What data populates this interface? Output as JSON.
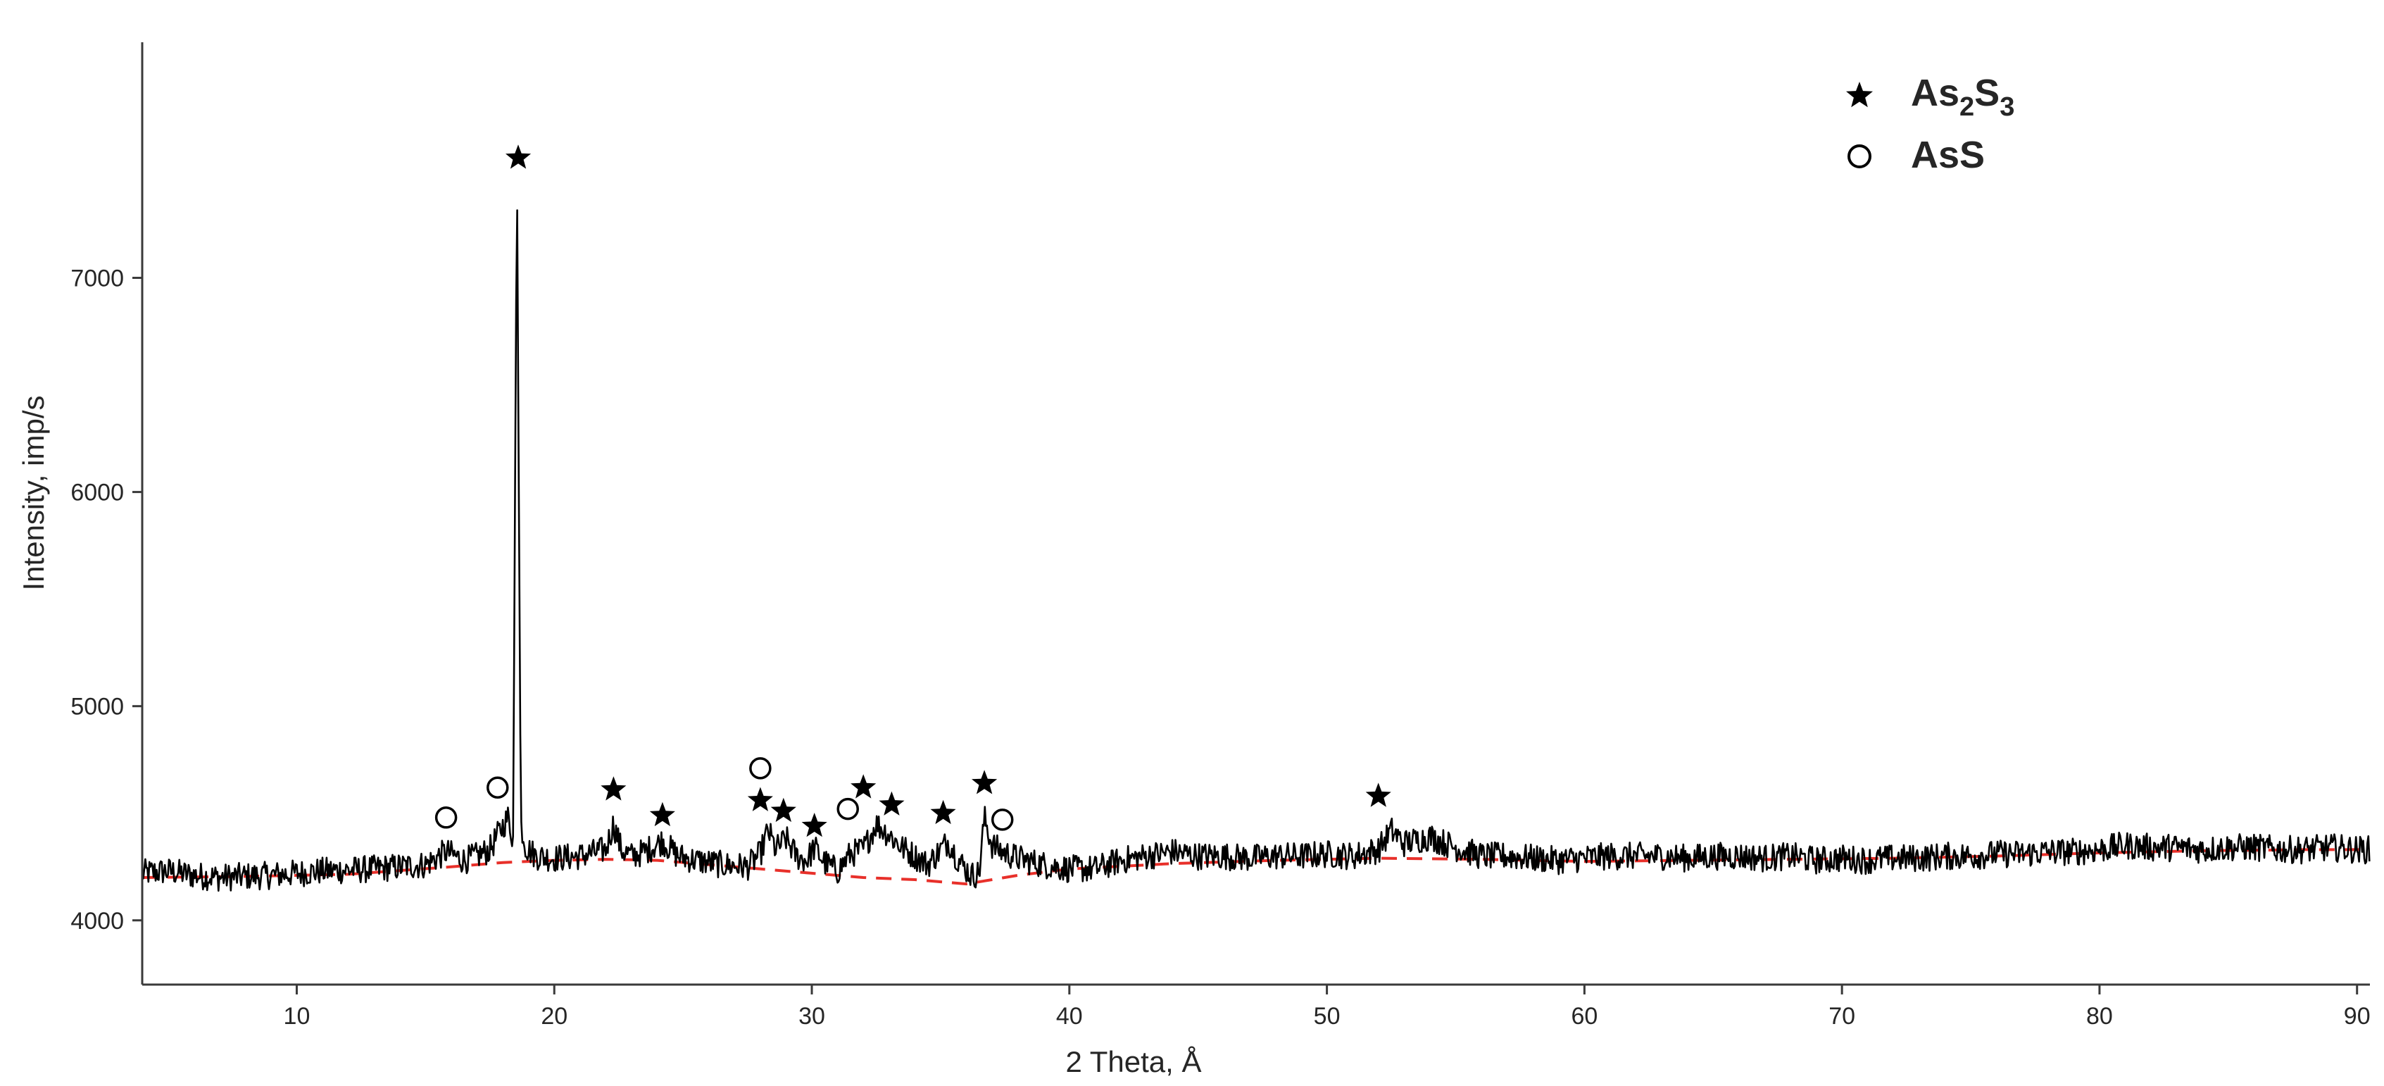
{
  "chart_data": {
    "type": "line",
    "title": "",
    "xlabel": "2 Theta, Å",
    "ylabel": "Intensity, imp/s",
    "xlim": [
      4,
      90.5
    ],
    "ylim": [
      3700,
      8100
    ],
    "x_ticks": [
      10,
      20,
      30,
      40,
      50,
      60,
      70,
      80,
      90
    ],
    "y_ticks": [
      4000,
      5000,
      6000,
      7000
    ],
    "grid": false,
    "legend_position": "top-right",
    "colors": {
      "pattern": "#000000",
      "baseline": "#e8302a",
      "axis": "#3a3a3a"
    },
    "series": [
      {
        "kind": "xrd-pattern",
        "x": [
          4,
          5,
          6,
          7,
          8,
          9,
          10,
          11,
          12,
          13,
          14,
          15,
          15.8,
          16.5,
          17,
          17.5,
          17.9,
          18.2,
          18.4,
          18.55,
          18.7,
          18.9,
          19.3,
          20,
          21,
          22,
          22.3,
          22.6,
          23,
          23.5,
          24.2,
          24.8,
          25.5,
          26.5,
          27.5,
          28,
          28.3,
          28.6,
          29,
          29.4,
          29.8,
          30.1,
          30.5,
          31,
          31.5,
          32,
          32.5,
          33,
          33.5,
          34,
          34.5,
          35,
          35.3,
          35.7,
          36.2,
          36.5,
          36.7,
          37,
          37.4,
          38,
          39,
          40,
          41,
          42,
          43,
          44,
          45,
          46,
          47,
          48,
          49,
          50,
          51,
          52,
          52.5,
          53,
          54,
          55,
          56,
          57,
          58,
          59,
          60,
          61,
          62,
          63,
          64,
          65,
          66,
          67,
          68,
          69,
          70,
          71,
          72,
          73,
          74,
          75,
          76,
          77,
          78,
          79,
          80,
          81,
          82,
          83,
          84,
          85,
          86,
          87,
          88,
          89,
          90,
          90.5
        ],
        "y": [
          4220,
          4230,
          4210,
          4200,
          4205,
          4210,
          4220,
          4230,
          4235,
          4240,
          4250,
          4260,
          4320,
          4280,
          4300,
          4330,
          4420,
          4480,
          4380,
          7520,
          4450,
          4340,
          4300,
          4290,
          4300,
          4330,
          4450,
          4330,
          4300,
          4320,
          4370,
          4300,
          4280,
          4260,
          4250,
          4310,
          4420,
          4330,
          4380,
          4300,
          4280,
          4340,
          4270,
          4230,
          4310,
          4330,
          4450,
          4400,
          4340,
          4300,
          4260,
          4330,
          4370,
          4280,
          4210,
          4220,
          4480,
          4350,
          4320,
          4290,
          4260,
          4240,
          4240,
          4280,
          4300,
          4320,
          4300,
          4300,
          4290,
          4300,
          4300,
          4310,
          4300,
          4330,
          4420,
          4360,
          4390,
          4340,
          4300,
          4300,
          4290,
          4280,
          4290,
          4300,
          4300,
          4300,
          4290,
          4300,
          4300,
          4290,
          4300,
          4280,
          4290,
          4280,
          4290,
          4290,
          4300,
          4300,
          4310,
          4310,
          4320,
          4320,
          4330,
          4350,
          4340,
          4340,
          4330,
          4340,
          4340,
          4330,
          4330,
          4340,
          4330,
          4330
        ]
      },
      {
        "kind": "background-baseline",
        "x": [
          4,
          8,
          12,
          16,
          18,
          20,
          22,
          24,
          26,
          28,
          30,
          32,
          34,
          36,
          37,
          38,
          40,
          44,
          48,
          52,
          56,
          60,
          64,
          68,
          72,
          76,
          80,
          84,
          88,
          90.5
        ],
        "y": [
          4200,
          4205,
          4215,
          4250,
          4270,
          4280,
          4285,
          4280,
          4260,
          4240,
          4220,
          4200,
          4190,
          4170,
          4190,
          4210,
          4240,
          4265,
          4280,
          4290,
          4285,
          4275,
          4280,
          4285,
          4290,
          4300,
          4315,
          4325,
          4330,
          4330
        ]
      }
    ],
    "markers": {
      "As2S3": [
        {
          "x": 18.6,
          "y": 7560
        },
        {
          "x": 22.3,
          "y": 4610
        },
        {
          "x": 24.2,
          "y": 4490
        },
        {
          "x": 28.0,
          "y": 4560
        },
        {
          "x": 28.9,
          "y": 4510
        },
        {
          "x": 30.1,
          "y": 4440
        },
        {
          "x": 32.0,
          "y": 4620
        },
        {
          "x": 33.1,
          "y": 4540
        },
        {
          "x": 35.1,
          "y": 4500
        },
        {
          "x": 36.7,
          "y": 4640
        },
        {
          "x": 52.0,
          "y": 4580
        }
      ],
      "AsS": [
        {
          "x": 15.8,
          "y": 4480
        },
        {
          "x": 17.8,
          "y": 4620
        },
        {
          "x": 28.0,
          "y": 4710
        },
        {
          "x": 31.4,
          "y": 4520
        },
        {
          "x": 37.4,
          "y": 4470
        }
      ]
    },
    "legend": {
      "as2s3": {
        "base1": "As",
        "sub1": "2",
        "base2": "S",
        "sub2": "3"
      },
      "ass": "AsS"
    }
  }
}
